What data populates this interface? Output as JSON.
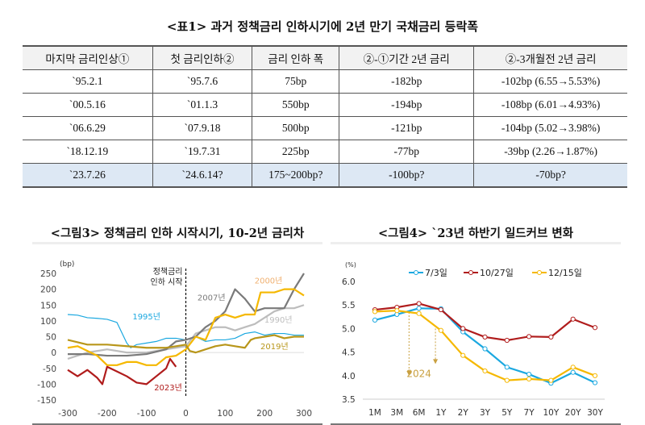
{
  "table": {
    "title": "<표1> 과거 정책금리 인하시기에 2년 만기 국채금리 등락폭",
    "headers": [
      "마지막 금리인상①",
      "첫 금리인하②",
      "금리 인하 폭",
      "②-①기간 2년 금리",
      "②-3개월전 2년 금리"
    ],
    "rows": [
      [
        "`95.2.1",
        "`95.7.6",
        "75bp",
        "-182bp",
        "-102bp (6.55→5.53%)"
      ],
      [
        "`00.5.16",
        "`01.1.3",
        "550bp",
        "-194bp",
        "-108bp (6.01→4.93%)"
      ],
      [
        "`06.6.29",
        "`07.9.18",
        "500bp",
        "-121bp",
        "-104bp (5.02→3.98%)"
      ],
      [
        "`18.12.19",
        "`19.7.31",
        "225bp",
        "-77bp",
        "-39bp (2.26→1.87%)"
      ],
      [
        "`23.7.26",
        "`24.6.14?",
        "175~200bp?",
        "-100bp?",
        "-70bp?"
      ]
    ],
    "highlight_color": "#dde8f4"
  },
  "chart_data": [
    {
      "type": "line",
      "title": "<그림3> 정책금리 인하 시작시기, 10-2년 금리차",
      "ylabel": "(bp)",
      "xlim": [
        -300,
        300
      ],
      "ylim": [
        -150,
        250
      ],
      "xticks": [
        -300,
        -200,
        -100,
        0,
        100,
        200,
        300
      ],
      "yticks": [
        -150,
        -100,
        -50,
        0,
        50,
        100,
        150,
        200,
        250
      ],
      "annotation": "정책금리 인하 시작",
      "annotation_lines": [
        "정책금리",
        "인하 시작"
      ],
      "series": [
        {
          "name": "1995년",
          "color": "#1ba8e0",
          "x": [
            -300,
            -275,
            -250,
            -225,
            -200,
            -175,
            -150,
            -140,
            -125,
            -100,
            -75,
            -50,
            -25,
            0,
            25,
            50,
            75,
            100,
            125,
            150,
            175,
            200,
            225,
            250,
            275,
            300
          ],
          "y": [
            120,
            118,
            110,
            108,
            105,
            95,
            30,
            15,
            25,
            30,
            35,
            45,
            45,
            40,
            50,
            35,
            40,
            40,
            45,
            60,
            65,
            55,
            60,
            60,
            55,
            55
          ]
        },
        {
          "name": "2023년",
          "color": "#b01c1c",
          "x": [
            -300,
            -275,
            -250,
            -225,
            -212,
            -200,
            -175,
            -150,
            -125,
            -100,
            -75,
            -50,
            -40,
            -25
          ],
          "y": [
            -55,
            -75,
            -55,
            -80,
            -100,
            -45,
            -60,
            -75,
            -95,
            -100,
            -75,
            -50,
            -20,
            -45
          ]
        },
        {
          "name": "1990년",
          "color": "#bdbdbd",
          "x": [
            -300,
            -250,
            -200,
            -150,
            -100,
            -50,
            0,
            25,
            50,
            75,
            100,
            125,
            150,
            175,
            200,
            225,
            250,
            275,
            300
          ],
          "y": [
            -20,
            0,
            10,
            0,
            0,
            10,
            20,
            60,
            70,
            80,
            80,
            70,
            80,
            90,
            110,
            130,
            140,
            140,
            150
          ]
        },
        {
          "name": "2007년",
          "color": "#7a7a7a",
          "x": [
            -300,
            -250,
            -200,
            -150,
            -100,
            -50,
            -25,
            0,
            25,
            50,
            75,
            100,
            125,
            150,
            175,
            200,
            225,
            250,
            275,
            300
          ],
          "y": [
            -5,
            -5,
            -10,
            -10,
            -5,
            10,
            35,
            40,
            50,
            80,
            100,
            130,
            200,
            170,
            130,
            140,
            140,
            140,
            200,
            250
          ]
        },
        {
          "name": "2000년",
          "color": "#f5b800",
          "x": [
            -300,
            -275,
            -250,
            -225,
            -200,
            -175,
            -150,
            -125,
            -100,
            -75,
            -50,
            -25,
            0,
            25,
            50,
            75,
            100,
            125,
            150,
            175,
            190,
            225,
            250,
            275,
            300
          ],
          "y": [
            15,
            20,
            5,
            -10,
            -40,
            -40,
            -30,
            -30,
            -40,
            -40,
            -15,
            -10,
            10,
            50,
            40,
            110,
            120,
            110,
            120,
            120,
            190,
            190,
            200,
            200,
            180
          ]
        },
        {
          "name": "2019년",
          "color": "#b8961a",
          "x": [
            -300,
            -250,
            -200,
            -150,
            -100,
            -50,
            -25,
            0,
            10,
            25,
            50,
            75,
            100,
            125,
            150,
            165,
            175,
            200,
            225,
            250,
            275,
            300
          ],
          "y": [
            40,
            25,
            25,
            20,
            15,
            15,
            20,
            25,
            5,
            0,
            10,
            20,
            25,
            20,
            15,
            40,
            45,
            50,
            55,
            45,
            50,
            50
          ]
        }
      ]
    },
    {
      "type": "line",
      "title": "<그림4> `23년 하반기 일드커브 변화",
      "ylabel": "(%)",
      "ylim": [
        3.5,
        6.0
      ],
      "yticks": [
        "3.5",
        "4.0",
        "4.5",
        "5.0",
        "5.5",
        "6.0"
      ],
      "categories": [
        "1M",
        "3M",
        "6M",
        "1Y",
        "2Y",
        "3Y",
        "5Y",
        "7Y",
        "10Y",
        "20Y",
        "30Y"
      ],
      "annotation": "2024",
      "legend": "top",
      "series": [
        {
          "name": "7/3일",
          "color": "#1ba8e0",
          "values": [
            5.18,
            5.3,
            5.43,
            5.42,
            4.93,
            4.57,
            4.18,
            4.03,
            3.84,
            4.07,
            3.85
          ]
        },
        {
          "name": "10/27일",
          "color": "#b01c1c",
          "values": [
            5.4,
            5.45,
            5.53,
            5.4,
            5.0,
            4.82,
            4.75,
            4.83,
            4.82,
            5.2,
            5.02
          ]
        },
        {
          "name": "12/15일",
          "color": "#f5b800",
          "values": [
            5.36,
            5.38,
            5.32,
            4.96,
            4.43,
            4.1,
            3.9,
            3.93,
            3.9,
            4.18,
            4.0
          ]
        }
      ]
    }
  ]
}
